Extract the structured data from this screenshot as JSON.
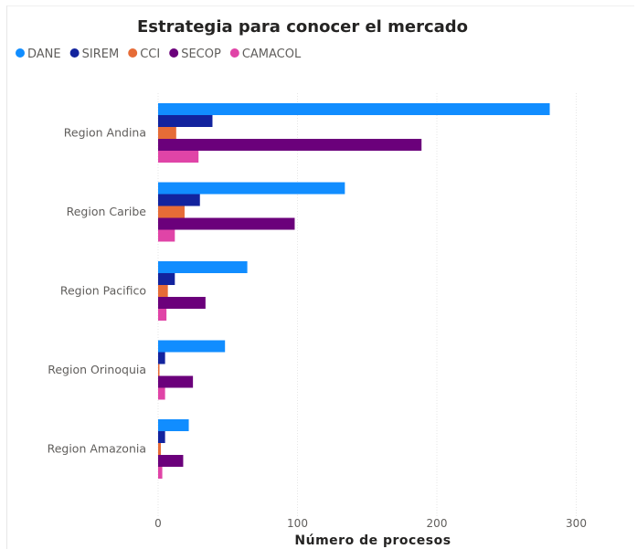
{
  "chart_data": {
    "type": "bar",
    "orientation": "horizontal",
    "title": "Estrategia para conocer el mercado",
    "xlabel": "Número de procesos",
    "ylabel": "",
    "categories": [
      "Region Andina",
      "Region Caribe",
      "Region Pacifico",
      "Region Orinoquia",
      "Region Amazonia"
    ],
    "series": [
      {
        "name": "DANE",
        "color": "#118DFF",
        "values": [
          281,
          134,
          64,
          48,
          22
        ]
      },
      {
        "name": "SIREM",
        "color": "#12239E",
        "values": [
          39,
          30,
          12,
          5,
          5
        ]
      },
      {
        "name": "CCI",
        "color": "#E66C37",
        "values": [
          13,
          19,
          7,
          1,
          2
        ]
      },
      {
        "name": "SECOP",
        "color": "#6B007B",
        "values": [
          189,
          98,
          34,
          25,
          18
        ]
      },
      {
        "name": "CAMACOL",
        "color": "#E044A7",
        "values": [
          29,
          12,
          6,
          5,
          3
        ]
      }
    ],
    "xlim": [
      0,
      300
    ],
    "xticks": [
      0,
      100,
      200,
      300
    ],
    "grid": true,
    "legend_position": "top-left"
  }
}
